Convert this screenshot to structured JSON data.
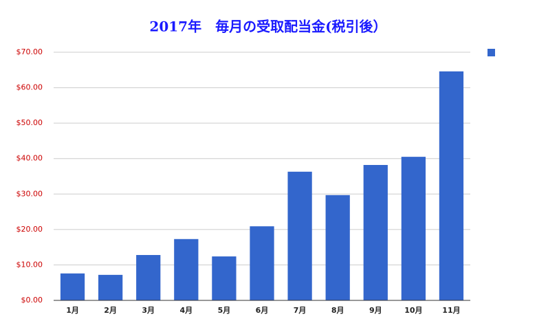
{
  "chart_data": {
    "type": "bar",
    "title": "2017年　毎月の受取配当金(税引後）",
    "categories": [
      "1月",
      "2月",
      "3月",
      "4月",
      "5月",
      "6月",
      "7月",
      "8月",
      "9月",
      "10月",
      "11月"
    ],
    "values": [
      7.6,
      7.2,
      12.8,
      17.3,
      12.4,
      20.9,
      36.3,
      29.7,
      38.2,
      40.5,
      64.6
    ],
    "color": "#3366cc",
    "ylim": [
      0,
      70
    ],
    "yticks": [
      {
        "value": 0,
        "label": "$0.00"
      },
      {
        "value": 10,
        "label": "$10.00"
      },
      {
        "value": 20,
        "label": "$20.00"
      },
      {
        "value": 30,
        "label": "$30.00"
      },
      {
        "value": 40,
        "label": "$40.00"
      },
      {
        "value": 50,
        "label": "$50.00"
      },
      {
        "value": 60,
        "label": "$60.00"
      },
      {
        "value": 70,
        "label": "$70.00"
      }
    ],
    "grid": true
  }
}
